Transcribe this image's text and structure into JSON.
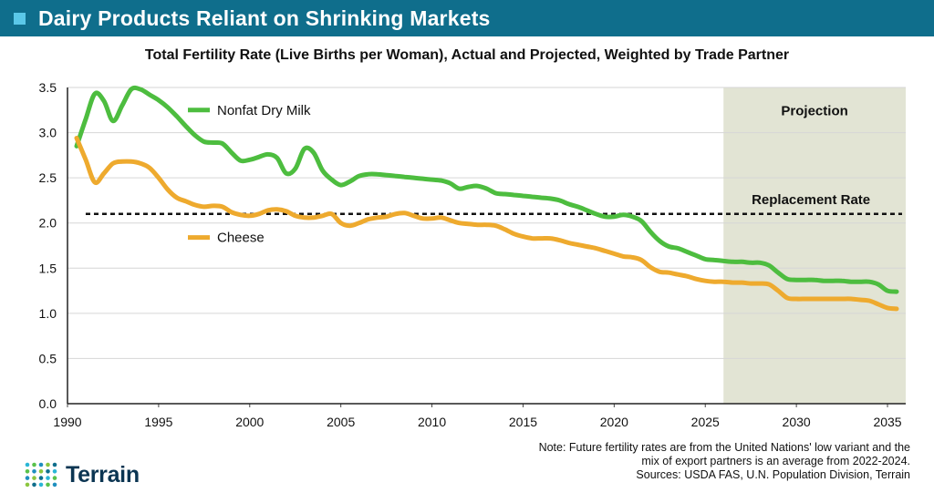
{
  "header": {
    "title": "Dairy Products Reliant on Shrinking Markets"
  },
  "colors": {
    "header_bg": "#0f6e8c",
    "header_square": "#5bc8e8",
    "nonfat": "#4dbd3f",
    "cheese": "#eeaa2e",
    "projection_bg": "#e2e4d4",
    "logo_navy": "#0b3552"
  },
  "chart_data": {
    "type": "line",
    "title": "Total Fertility Rate (Live Births per Woman), Actual and Projected, Weighted by Trade Partner",
    "xlim": [
      1990,
      2036
    ],
    "ylim": [
      0,
      3.5
    ],
    "x_ticks": [
      "1990",
      "1995",
      "2000",
      "2005",
      "2010",
      "2015",
      "2020",
      "2025",
      "2030",
      "2035"
    ],
    "y_ticks": [
      "0.0",
      "0.5",
      "1.0",
      "1.5",
      "2.0",
      "2.5",
      "3.0",
      "3.5"
    ],
    "grid": true,
    "projection": {
      "start": 2026,
      "end": 2036,
      "label": "Projection"
    },
    "reference_line": {
      "value": 2.1,
      "label": "Replacement Rate"
    },
    "series": [
      {
        "name": "Nonfat Dry Milk",
        "color": "#4dbd3f",
        "x": [
          1990.5,
          1991,
          1991.5,
          1992,
          1992.5,
          1993,
          1993.5,
          1994,
          1994.5,
          1995,
          1995.5,
          1996,
          1996.5,
          1997,
          1997.5,
          1998,
          1998.5,
          1999,
          1999.5,
          2000,
          2000.5,
          2001,
          2001.5,
          2002,
          2002.5,
          2003,
          2003.5,
          2004,
          2004.5,
          2005,
          2005.5,
          2006,
          2006.5,
          2007,
          2007.5,
          2008,
          2008.5,
          2009,
          2009.5,
          2010,
          2010.5,
          2011,
          2011.5,
          2012,
          2012.5,
          2013,
          2013.5,
          2014,
          2014.5,
          2015,
          2015.5,
          2016,
          2016.5,
          2017,
          2017.5,
          2018,
          2018.5,
          2019,
          2019.5,
          2020,
          2020.5,
          2021,
          2021.5,
          2022,
          2022.5,
          2023,
          2023.5,
          2024,
          2024.5,
          2025,
          2025.5,
          2026,
          2026.5,
          2027,
          2027.5,
          2028,
          2028.5,
          2029,
          2029.5,
          2030,
          2030.5,
          2031,
          2031.5,
          2032,
          2032.5,
          2033,
          2033.5,
          2034,
          2034.5,
          2035,
          2035.5
        ],
        "values": [
          2.85,
          3.15,
          3.43,
          3.35,
          3.13,
          3.3,
          3.48,
          3.48,
          3.42,
          3.36,
          3.28,
          3.18,
          3.07,
          2.97,
          2.9,
          2.89,
          2.88,
          2.78,
          2.69,
          2.7,
          2.73,
          2.76,
          2.72,
          2.55,
          2.6,
          2.82,
          2.78,
          2.58,
          2.48,
          2.42,
          2.46,
          2.52,
          2.54,
          2.54,
          2.53,
          2.52,
          2.51,
          2.5,
          2.49,
          2.48,
          2.47,
          2.44,
          2.38,
          2.4,
          2.41,
          2.38,
          2.33,
          2.32,
          2.31,
          2.3,
          2.29,
          2.28,
          2.27,
          2.25,
          2.21,
          2.18,
          2.14,
          2.1,
          2.07,
          2.07,
          2.09,
          2.07,
          2.02,
          1.9,
          1.8,
          1.74,
          1.72,
          1.68,
          1.64,
          1.6,
          1.59,
          1.58,
          1.57,
          1.57,
          1.56,
          1.56,
          1.53,
          1.45,
          1.38,
          1.37,
          1.37,
          1.37,
          1.36,
          1.36,
          1.36,
          1.35,
          1.35,
          1.35,
          1.32,
          1.25,
          1.24
        ]
      },
      {
        "name": "Cheese",
        "color": "#eeaa2e",
        "x": [
          1990.5,
          1991,
          1991.5,
          1992,
          1992.5,
          1993,
          1993.5,
          1994,
          1994.5,
          1995,
          1995.5,
          1996,
          1996.5,
          1997,
          1997.5,
          1998,
          1998.5,
          1999,
          1999.5,
          2000,
          2000.5,
          2001,
          2001.5,
          2002,
          2002.5,
          2003,
          2003.5,
          2004,
          2004.5,
          2005,
          2005.5,
          2006,
          2006.5,
          2007,
          2007.5,
          2008,
          2008.5,
          2009,
          2009.5,
          2010,
          2010.5,
          2011,
          2011.5,
          2012,
          2012.5,
          2013,
          2013.5,
          2014,
          2014.5,
          2015,
          2015.5,
          2016,
          2016.5,
          2017,
          2017.5,
          2018,
          2018.5,
          2019,
          2019.5,
          2020,
          2020.5,
          2021,
          2021.5,
          2022,
          2022.5,
          2023,
          2023.5,
          2024,
          2024.5,
          2025,
          2025.5,
          2026,
          2026.5,
          2027,
          2027.5,
          2028,
          2028.5,
          2029,
          2029.5,
          2030,
          2030.5,
          2031,
          2031.5,
          2032,
          2032.5,
          2033,
          2033.5,
          2034,
          2034.5,
          2035,
          2035.5
        ],
        "values": [
          2.94,
          2.7,
          2.45,
          2.55,
          2.66,
          2.68,
          2.68,
          2.66,
          2.61,
          2.5,
          2.37,
          2.28,
          2.24,
          2.2,
          2.18,
          2.19,
          2.18,
          2.12,
          2.09,
          2.08,
          2.1,
          2.14,
          2.15,
          2.13,
          2.08,
          2.06,
          2.06,
          2.08,
          2.1,
          2.0,
          1.97,
          2.0,
          2.04,
          2.06,
          2.07,
          2.1,
          2.11,
          2.08,
          2.05,
          2.05,
          2.06,
          2.03,
          2.0,
          1.99,
          1.98,
          1.98,
          1.97,
          1.93,
          1.88,
          1.85,
          1.83,
          1.83,
          1.83,
          1.81,
          1.78,
          1.76,
          1.74,
          1.72,
          1.69,
          1.66,
          1.63,
          1.62,
          1.59,
          1.51,
          1.46,
          1.45,
          1.43,
          1.41,
          1.38,
          1.36,
          1.35,
          1.35,
          1.34,
          1.34,
          1.33,
          1.33,
          1.32,
          1.25,
          1.17,
          1.16,
          1.16,
          1.16,
          1.16,
          1.16,
          1.16,
          1.16,
          1.15,
          1.14,
          1.1,
          1.06,
          1.05
        ]
      }
    ],
    "legend": [
      {
        "label": "Nonfat Dry Milk",
        "placement": "upper-left"
      },
      {
        "label": "Cheese",
        "placement": "center-left"
      }
    ]
  },
  "note": {
    "line1": "Note: Future fertility rates are from the United Nations' low variant and the",
    "line2": "mix of export partners is an average from 2022-2024.",
    "line3": "Sources: USDA FAS, U.N. Population Division, Terrain"
  },
  "logo": {
    "word": "Terrain"
  }
}
